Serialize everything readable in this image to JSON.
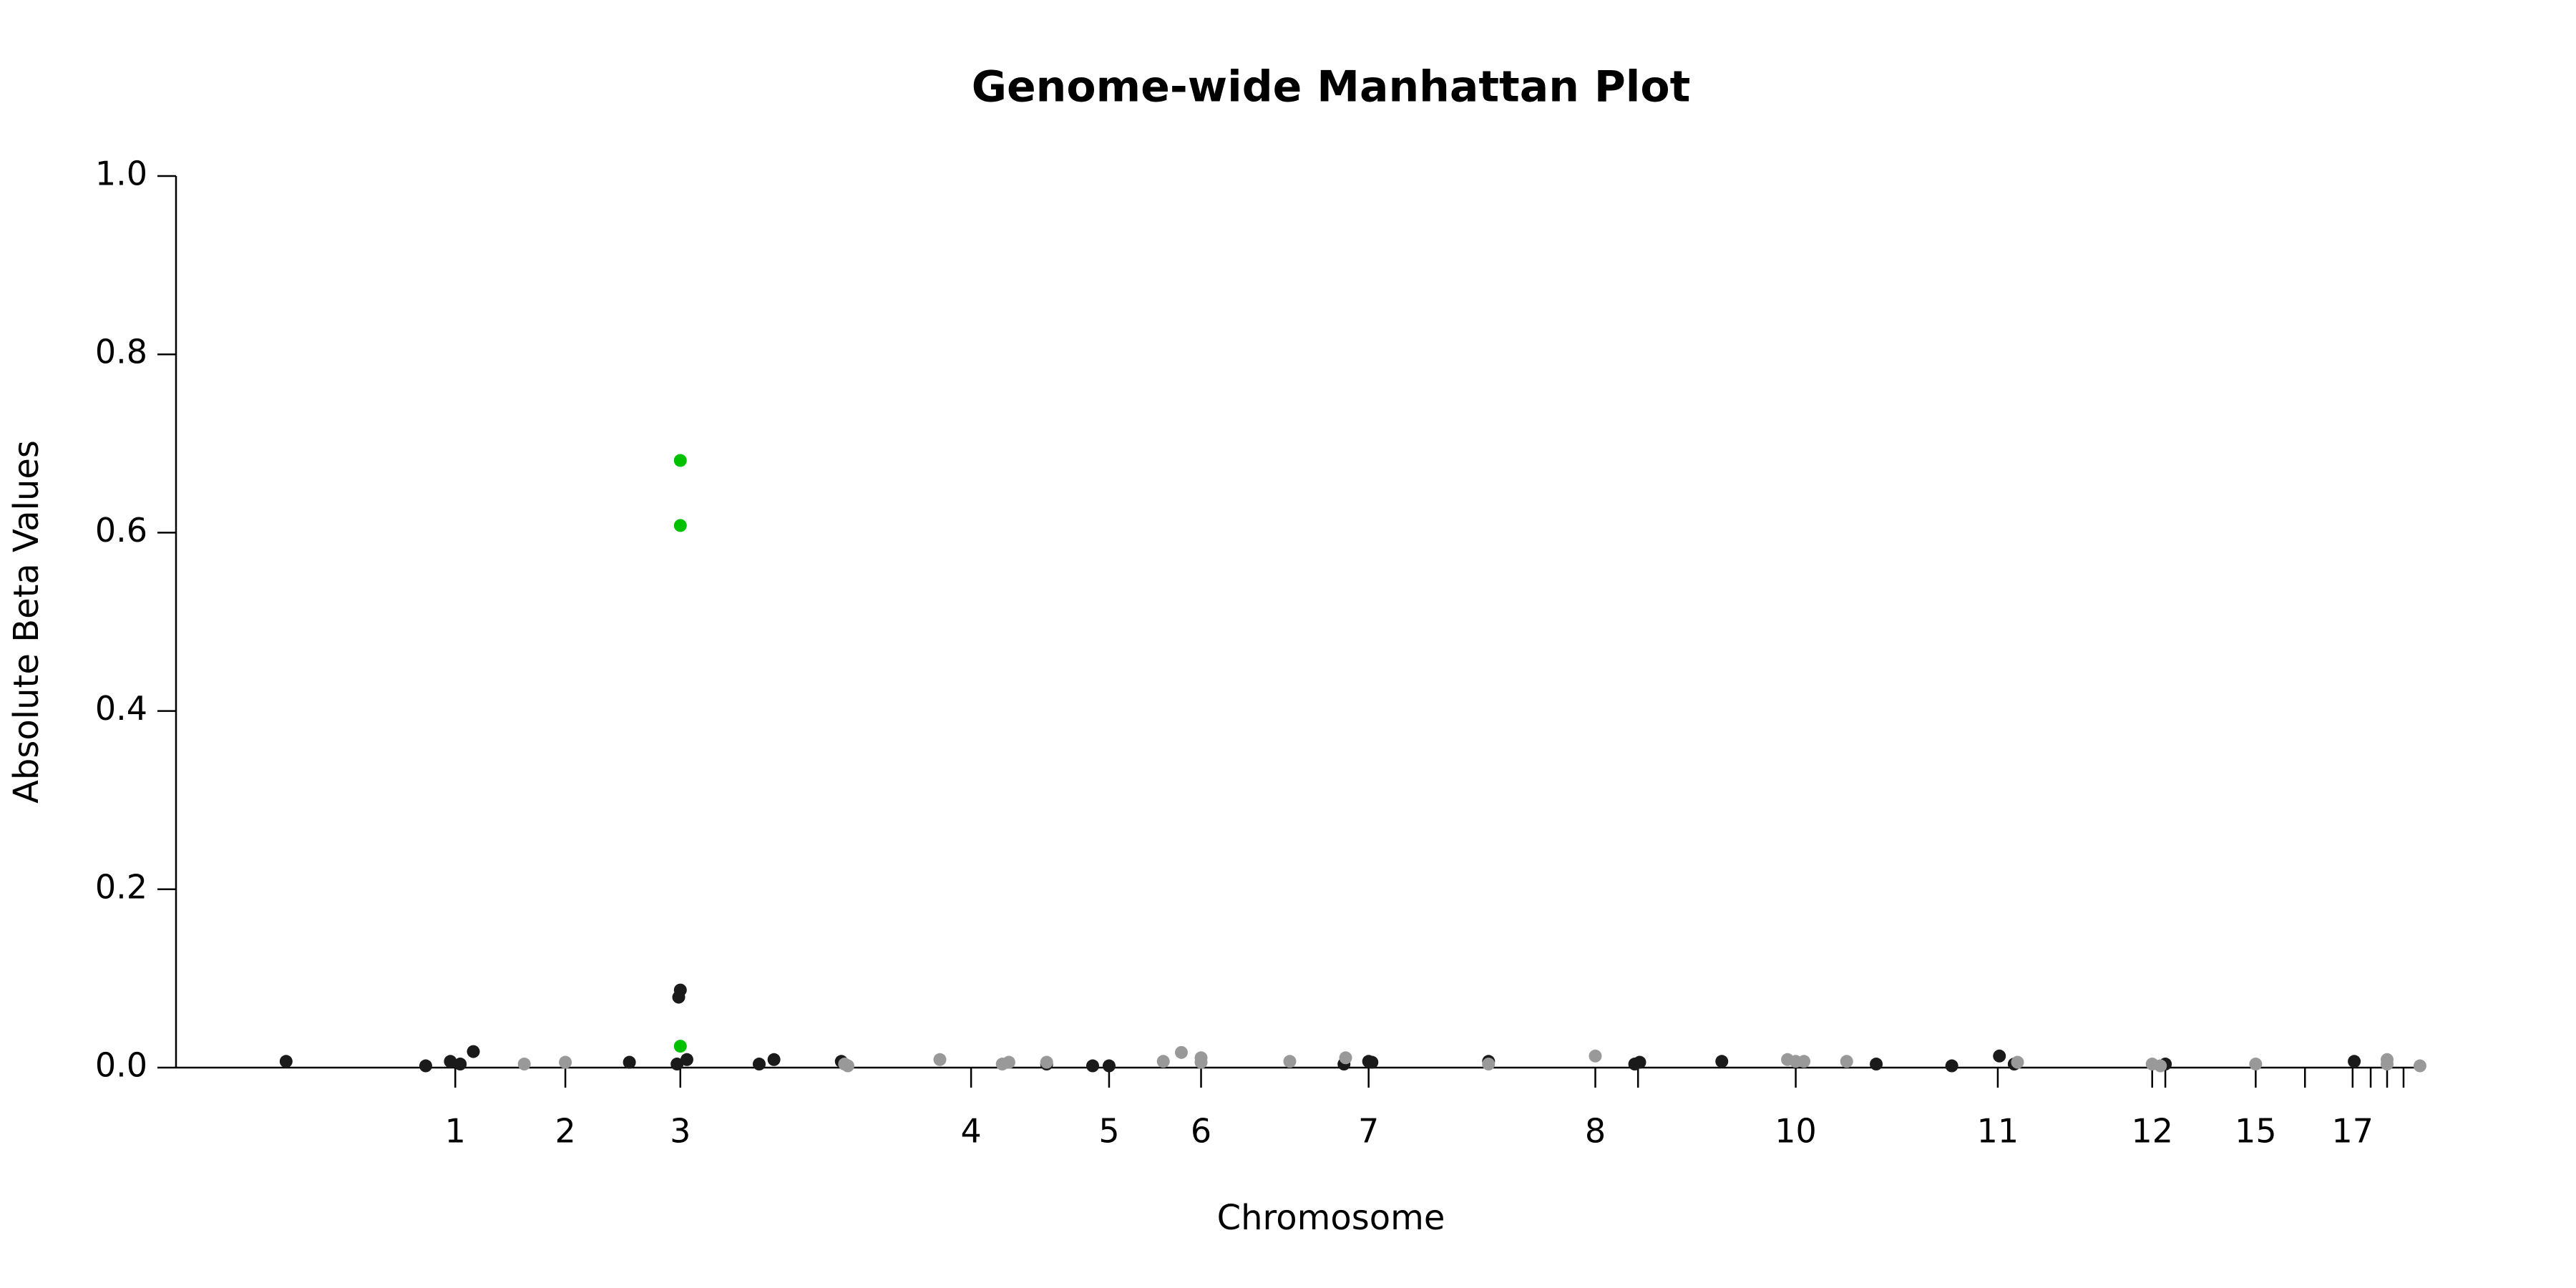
{
  "chart_data": {
    "type": "scatter",
    "title": "Genome-wide Manhattan Plot",
    "x_label": "Chromosome",
    "y_label": "Absolute Beta Values",
    "xlim": [
      7,
      1380
    ],
    "ylim": [
      0,
      1
    ],
    "yticks": [
      {
        "value": 0,
        "label": "0.0"
      },
      0.2,
      0.4,
      0.6,
      0.8,
      {
        "value": 1,
        "label": "1.0"
      }
    ],
    "xticks": [
      {
        "value": 177,
        "label": "1"
      },
      {
        "value": 244,
        "label": "2"
      },
      {
        "value": 314,
        "label": "3"
      },
      {
        "value": 491,
        "label": "4"
      },
      {
        "value": 575,
        "label": "5"
      },
      {
        "value": 631,
        "label": "6"
      },
      {
        "value": 733,
        "label": "7"
      },
      {
        "value": 871,
        "label": "8"
      },
      {
        "value": 897,
        "label": null
      },
      {
        "value": 993,
        "label": "10"
      },
      {
        "value": 1116,
        "label": "11"
      },
      {
        "value": 1210,
        "label": "12"
      },
      {
        "value": 1218,
        "label": null
      },
      {
        "value": 1273,
        "label": "15"
      },
      {
        "value": 1303,
        "label": null
      },
      {
        "value": 1332,
        "label": "17"
      },
      {
        "value": 1343,
        "label": null
      },
      {
        "value": 1353,
        "label": null
      },
      {
        "value": 1363,
        "label": null
      }
    ],
    "series": [
      {
        "color": "#1a1a1a",
        "x": [
          74,
          159,
          174,
          180,
          188,
          283,
          312,
          313,
          314,
          318,
          362,
          371,
          412,
          537,
          565,
          575,
          718,
          733,
          735,
          806,
          895,
          898,
          948,
          1042,
          1088,
          1117,
          1126,
          1218,
          1333
        ],
        "values": [
          0.007,
          0.002,
          0.007,
          0.004,
          0.018,
          0.006,
          0.004,
          0.079,
          0.087,
          0.009,
          0.004,
          0.009,
          0.007,
          0.004,
          0.002,
          0.002,
          0.004,
          0.007,
          0.006,
          0.007,
          0.004,
          0.006,
          0.007,
          0.004,
          0.002,
          0.013,
          0.004,
          0.004,
          0.007
        ]
      },
      {
        "color": "#999999",
        "x": [
          219,
          244,
          414,
          416,
          472,
          510,
          514,
          537,
          608,
          619,
          631,
          631,
          685,
          719,
          806,
          871,
          988,
          993,
          998,
          1024,
          1128,
          1210,
          1215,
          1273,
          1353,
          1353,
          1373
        ],
        "values": [
          0.004,
          0.006,
          0.004,
          0.002,
          0.009,
          0.004,
          0.006,
          0.006,
          0.007,
          0.017,
          0.011,
          0.006,
          0.007,
          0.011,
          0.004,
          0.013,
          0.009,
          0.007,
          0.007,
          0.007,
          0.006,
          0.004,
          0.002,
          0.004,
          0.009,
          0.004,
          0.002
        ]
      },
      {
        "color": "#00c000",
        "x": [
          314,
          314,
          314
        ],
        "values": [
          0.681,
          0.608,
          0.024
        ]
      }
    ]
  }
}
